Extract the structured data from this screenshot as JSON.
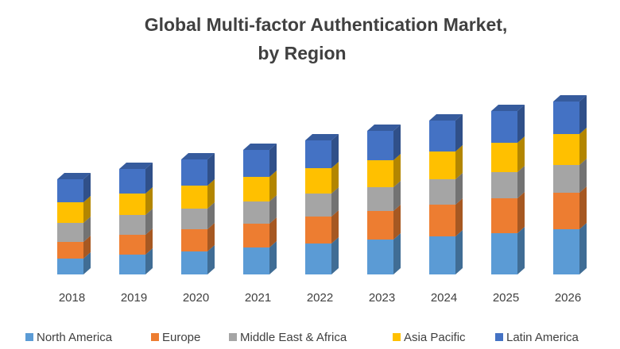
{
  "chart_data": {
    "type": "bar3d_stacked",
    "title": [
      "Global Multi-factor Authentication Market,",
      "by Region"
    ],
    "categories": [
      "2018",
      "2019",
      "2020",
      "2021",
      "2022",
      "2023",
      "2024",
      "2025",
      "2026"
    ],
    "series": [
      {
        "name": "North America",
        "color": "#5b9bd5",
        "values": [
          20,
          25,
          29,
          34,
          39,
          44,
          48,
          52,
          57
        ]
      },
      {
        "name": "Europe",
        "color": "#ed7d31",
        "values": [
          21,
          25,
          28,
          30,
          34,
          36,
          40,
          44,
          46
        ]
      },
      {
        "name": "Middle East & Africa",
        "color": "#a5a5a5",
        "values": [
          24,
          25,
          26,
          28,
          29,
          30,
          32,
          33,
          35
        ]
      },
      {
        "name": "Asia Pacific",
        "color": "#ffc000",
        "values": [
          26,
          27,
          29,
          31,
          32,
          34,
          35,
          37,
          39
        ]
      },
      {
        "name": "Latin America",
        "color": "#4472c4",
        "values": [
          29,
          31,
          33,
          34,
          35,
          37,
          39,
          40,
          41
        ]
      }
    ]
  }
}
